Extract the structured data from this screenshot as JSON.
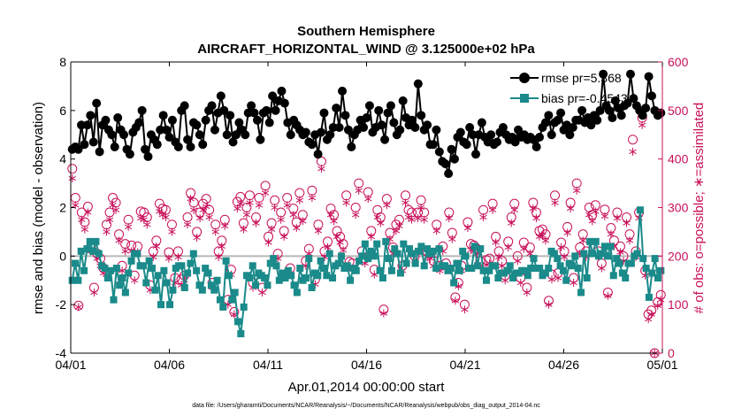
{
  "chart_data": {
    "type": "line",
    "title": "Southern Hemisphere",
    "subtitle": "AIRCRAFT_HORIZONTAL_WIND @ 3.125000e+02 hPa",
    "xlabel": "Apr.01,2014 00:00:00 start",
    "ylabel_left": "rmse and bias (model - observation)",
    "ylabel_right": "# of obs: o=possible; ∗=assimilated",
    "xlim": [
      0,
      30
    ],
    "ylim_left": [
      -4,
      8
    ],
    "ylim_right": [
      0,
      600
    ],
    "x_ticks": [
      0,
      5,
      10,
      15,
      20,
      25,
      30
    ],
    "x_tick_labels": [
      "04/01",
      "04/06",
      "04/11",
      "04/16",
      "04/21",
      "04/26",
      "05/01"
    ],
    "y_ticks_left": [
      "-4",
      "-2",
      "0",
      "2",
      "4",
      "6",
      "8"
    ],
    "y_ticks_right": [
      "0",
      "100",
      "200",
      "300",
      "400",
      "500",
      "600"
    ],
    "colors": {
      "rmse": "#000000",
      "bias": "#1a8a8a",
      "obs": "#c8105a",
      "zero": "#b8b8b8"
    },
    "series": [
      {
        "name": "rmse",
        "legend": "rmse pr=5.368",
        "axis": "left",
        "marker": "circle",
        "values": [
          4.4,
          4.5,
          4.4,
          5.4,
          4.6,
          5.4,
          5.8,
          4.7,
          6.3,
          4.3,
          5.4,
          5.6,
          5.2,
          5.0,
          4.5,
          5.7,
          5.2,
          5.0,
          4.4,
          4.2,
          5.1,
          5.3,
          5.5,
          6.0,
          4.4,
          4.1,
          5.0,
          4.8,
          4.6,
          5.2,
          5.8,
          5.2,
          4.9,
          5.6,
          4.7,
          4.5,
          6.0,
          6.2,
          4.8,
          4.5,
          5.5,
          5.4,
          5.0,
          4.6,
          5.6,
          6.0,
          6.2,
          5.2,
          5.9,
          6.6,
          6.0,
          5.0,
          5.8,
          4.7,
          5.0,
          5.5,
          5.2,
          5.0,
          5.9,
          6.2,
          5.9,
          5.6,
          4.8,
          5.9,
          6.0,
          5.5,
          6.6,
          6.0,
          6.4,
          6.8,
          6.3,
          5.5,
          5.0,
          5.6,
          5.4,
          5.2,
          5.0,
          5.1,
          4.7,
          4.6,
          5.0,
          4.2,
          5.1,
          5.9,
          4.8,
          5.0,
          5.3,
          6.1,
          5.3,
          6.8,
          5.8,
          5.2,
          4.5,
          5.0,
          5.2,
          5.6,
          5.3,
          5.7,
          6.2,
          5.1,
          5.3,
          6.0,
          5.4,
          4.8,
          5.9,
          6.2,
          5.5,
          5.0,
          5.2,
          6.4,
          5.7,
          5.4,
          5.6,
          5.3,
          7.1,
          5.8,
          5.2,
          5.4,
          4.6,
          4.6,
          5.2,
          4.3,
          3.9,
          3.8,
          3.4,
          4.4,
          4.0,
          4.9,
          5.1,
          4.7,
          4.6,
          5.3,
          5.0,
          4.2,
          5.0,
          5.5,
          4.9,
          4.7,
          5.0,
          4.6,
          4.7,
          5.1,
          5.3,
          5.0,
          4.8,
          4.9,
          4.7,
          5.2,
          4.9,
          5.0,
          4.8,
          4.9,
          4.8,
          4.5,
          4.9,
          5.3,
          5.5,
          5.8,
          5.0,
          5.5,
          5.6,
          5.9,
          5.2,
          5.4,
          5.0,
          5.3,
          5.6,
          5.6,
          6.0,
          5.5,
          5.7,
          5.4,
          5.8,
          5.6,
          6.0,
          7.5,
          6.2,
          6.0,
          5.7,
          6.4,
          6.1,
          5.8,
          6.2,
          6.3,
          7.5,
          6.5,
          6.2,
          6.0,
          5.8,
          6.1,
          7.4,
          6.6,
          6.0,
          5.8,
          5.9
        ]
      },
      {
        "name": "bias",
        "legend": "bias pr=-0.4543",
        "axis": "left",
        "marker": "square",
        "values": [
          -1.0,
          -0.3,
          -1.0,
          0.2,
          -0.6,
          0.3,
          0.6,
          0.2,
          0.6,
          0.1,
          -0.4,
          -0.5,
          -0.9,
          -0.6,
          -1.8,
          -0.5,
          -1.2,
          -0.9,
          -1.5,
          -0.7,
          -0.2,
          0.1,
          0.1,
          -0.4,
          -0.4,
          -1.1,
          -0.2,
          -0.5,
          -1.4,
          -0.8,
          -2.0,
          -0.6,
          -1.1,
          -2.0,
          -1.4,
          -0.5,
          -0.4,
          -0.4,
          -1.3,
          -0.7,
          -0.3,
          0.1,
          -0.6,
          -1.2,
          -1.4,
          -0.5,
          -0.7,
          -1.2,
          -1.4,
          -1.0,
          -1.8,
          -2.1,
          -0.2,
          -0.8,
          -1.8,
          -1.5,
          -2.7,
          -3.2,
          -2.1,
          -0.8,
          -0.9,
          -0.4,
          -1.2,
          -0.7,
          -0.8,
          -0.9,
          -1.2,
          -0.3,
          -0.1,
          -0.4,
          -1.0,
          -0.7,
          -0.9,
          -0.6,
          -0.8,
          -1.2,
          -1.5,
          -0.5,
          -1.0,
          -0.9,
          -0.1,
          -1.3,
          -0.7,
          -0.8,
          -0.2,
          -0.5,
          -0.8,
          0.1,
          -0.9,
          -0.4,
          -0.3,
          0.0,
          -0.5,
          -0.4,
          -1.0,
          -0.5,
          -0.6,
          -0.2,
          0.0,
          0.5,
          -0.1,
          0.2,
          0.0,
          0.5,
          -0.6,
          -0.9,
          0.6,
          -0.1,
          -0.6,
          0.3,
          0.1,
          -0.7,
          0.5,
          -0.3,
          0.3,
          0.1,
          -0.3,
          0.2,
          0.4,
          -0.4,
          0.3,
          0.1,
          0.2,
          -0.5,
          0.3,
          -0.4,
          -0.4,
          -0.6,
          -0.5,
          -1.1,
          -0.3,
          -0.6,
          0.2,
          0.0,
          -0.5,
          -0.5,
          0.4,
          -0.4,
          0.3,
          -0.6,
          -1.0,
          -0.6,
          -0.4,
          -0.4,
          -0.9,
          -0.7,
          -0.7,
          -0.6,
          -0.4,
          -0.9,
          -0.7,
          -0.7,
          -0.6,
          -0.6,
          -0.8,
          -0.5,
          -0.1,
          -0.5,
          -0.5,
          -0.8,
          -0.7,
          -0.5,
          0.2,
          0.1,
          -0.1,
          -0.4,
          -0.6,
          -1.0,
          -0.3,
          -0.4,
          0.0,
          -0.5,
          -1.5,
          0.1,
          -0.9,
          0.6,
          0.1,
          0.6,
          0.0,
          0.1,
          0.4,
          0.0,
          0.4,
          -0.8,
          -0.1,
          -0.3,
          -0.7,
          -0.9,
          -0.3,
          -0.3,
          0.0,
          0.1,
          1.9,
          -0.1,
          -0.5,
          -1.7,
          -0.7,
          -0.1,
          -0.9,
          -0.6
        ]
      },
      {
        "name": "possible",
        "axis": "right",
        "marker": "o",
        "values": [
          380,
          320,
          98,
          290,
          270,
          302,
          220,
          135,
          205,
          195,
          175,
          265,
          290,
          320,
          310,
          245,
          180,
          225,
          275,
          222,
          160,
          220,
          292,
          290,
          280,
          140,
          210,
          232,
          308,
          298,
          295,
          208,
          265,
          155,
          210,
          152,
          160,
          280,
          330,
          310,
          250,
          290,
          308,
          318,
          295,
          145,
          265,
          210,
          232,
          275,
          110,
          172,
          85,
          312,
          322,
          268,
          300,
          325,
          145,
          280,
          320,
          135,
          345,
          240,
          268,
          315,
          205,
          290,
          252,
          320,
          175,
          298,
          270,
          330,
          285,
          190,
          215,
          335,
          152,
          265,
          395,
          210,
          230,
          298,
          285,
          252,
          240,
          225,
          325,
          188,
          185,
          300,
          350,
          210,
          195,
          332,
          252,
          172,
          295,
          280,
          90,
          318,
          248,
          218,
          265,
          275,
          180,
          325,
          295,
          290,
          200,
          290,
          315,
          290,
          210,
          205,
          190,
          265,
          180,
          220,
          185,
          290,
          248,
          115,
          145,
          180,
          100,
          270,
          225,
          222,
          215,
          190,
          295,
          192,
          195,
          308,
          240,
          210,
          190,
          160,
          230,
          280,
          308,
          200,
          155,
          228,
          135,
          218,
          310,
          290,
          252,
          255,
          245,
          108,
          162,
          325,
          165,
          228,
          210,
          260,
          310,
          155,
          350,
          218,
          245,
          210,
          300,
          285,
          305,
          210,
          185,
          296,
          125,
          258,
          232,
          290,
          220,
          200,
          280,
          245,
          440,
          210,
          290,
          485,
          170,
          80,
          88,
          0,
          105,
          120
        ]
      },
      {
        "name": "assimilated",
        "axis": "right",
        "marker": "*",
        "values": [
          360,
          305,
          95,
          275,
          255,
          290,
          210,
          125,
          195,
          180,
          165,
          250,
          275,
          305,
          295,
          232,
          170,
          210,
          260,
          210,
          150,
          208,
          278,
          275,
          265,
          130,
          198,
          220,
          292,
          285,
          280,
          195,
          250,
          145,
          198,
          140,
          150,
          265,
          318,
          295,
          238,
          278,
          295,
          302,
          280,
          135,
          250,
          198,
          220,
          262,
          100,
          162,
          80,
          298,
          308,
          255,
          285,
          310,
          135,
          268,
          305,
          125,
          330,
          228,
          255,
          300,
          195,
          275,
          240,
          305,
          165,
          285,
          258,
          315,
          272,
          180,
          205,
          320,
          142,
          252,
          380,
          198,
          218,
          285,
          272,
          240,
          228,
          212,
          310,
          178,
          175,
          285,
          335,
          198,
          185,
          318,
          240,
          162,
          280,
          268,
          82,
          305,
          235,
          205,
          252,
          262,
          170,
          310,
          280,
          275,
          190,
          278,
          300,
          275,
          198,
          195,
          180,
          252,
          170,
          210,
          175,
          278,
          235,
          108,
          138,
          170,
          90,
          258,
          212,
          210,
          205,
          180,
          280,
          182,
          185,
          295,
          228,
          198,
          180,
          150,
          218,
          268,
          295,
          190,
          145,
          215,
          125,
          205,
          298,
          278,
          240,
          242,
          232,
          100,
          152,
          310,
          155,
          218,
          198,
          248,
          298,
          145,
          335,
          205,
          232,
          198,
          285,
          272,
          292,
          198,
          175,
          282,
          118,
          245,
          220,
          278,
          208,
          190,
          268,
          232,
          415,
          198,
          278,
          470,
          160,
          70,
          80,
          0,
          98,
          110
        ]
      }
    ]
  },
  "footer": {
    "data_file": "data file: /Users/gharamti/Documents/NCAR/Reanalysis/~/Documents/NCAR/Reanalysis/webpub/obs_diag_output_2014-04.nc"
  }
}
